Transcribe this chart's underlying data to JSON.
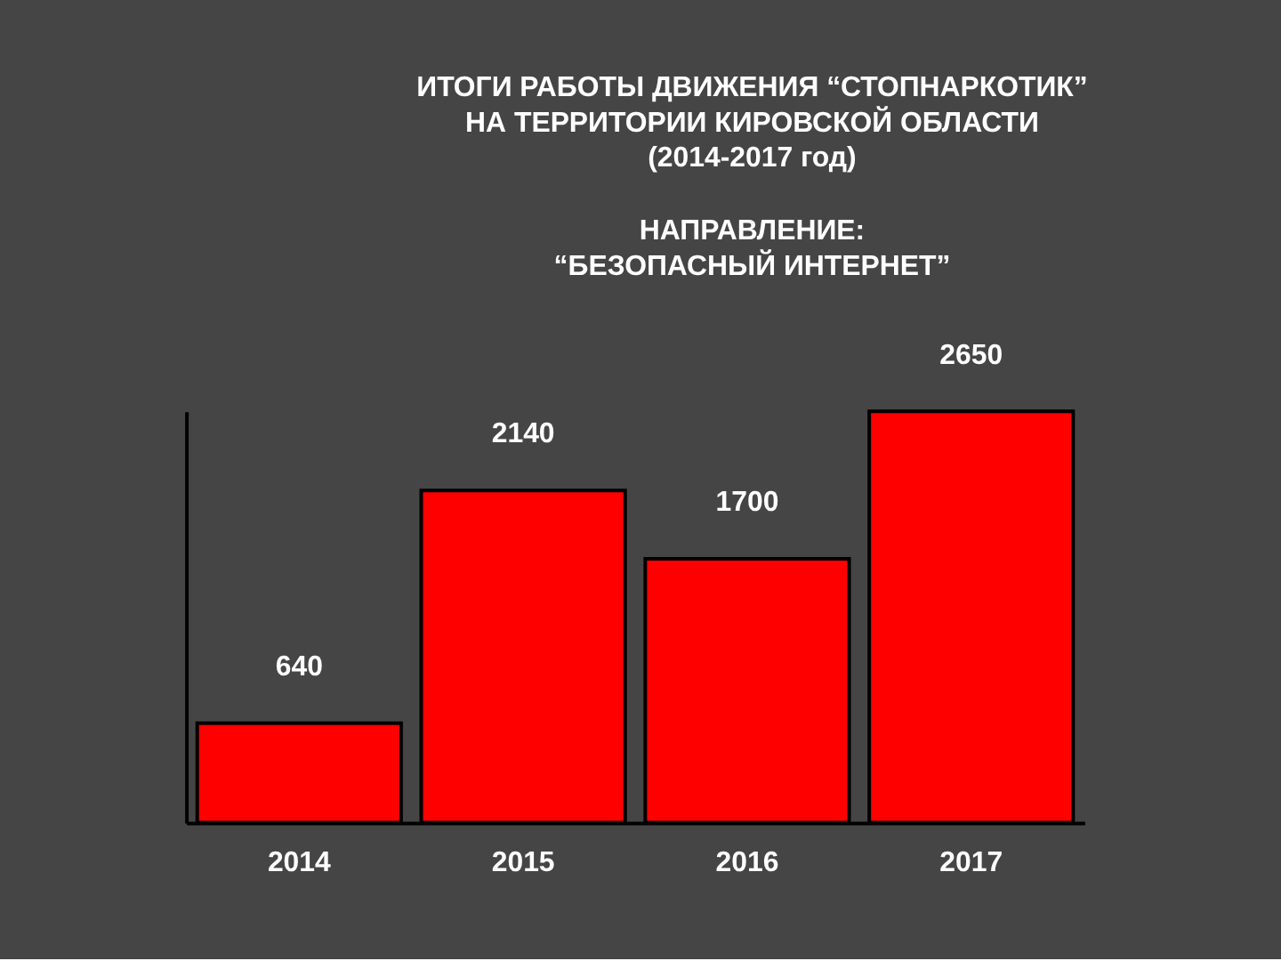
{
  "chart_data": {
    "type": "bar",
    "title": "ИТОГИ РАБОТЫ ДВИЖЕНИЯ “СТОПНАРКОТИК”\nНА ТЕРРИТОРИИ КИРОВСКОЙ ОБЛАСТИ\n(2014-2017 год)",
    "subtitle": "НАПРАВЛЕНИЕ:\n“БЕЗОПАСНЫЙ ИНТЕРНЕТ”",
    "categories": [
      "2014",
      "2015",
      "2016",
      "2017"
    ],
    "values": [
      640,
      2140,
      1700,
      2650
    ],
    "color": "#ff0000",
    "ylim": [
      0,
      2650
    ],
    "data_labels": true,
    "tick_labels": "x"
  }
}
